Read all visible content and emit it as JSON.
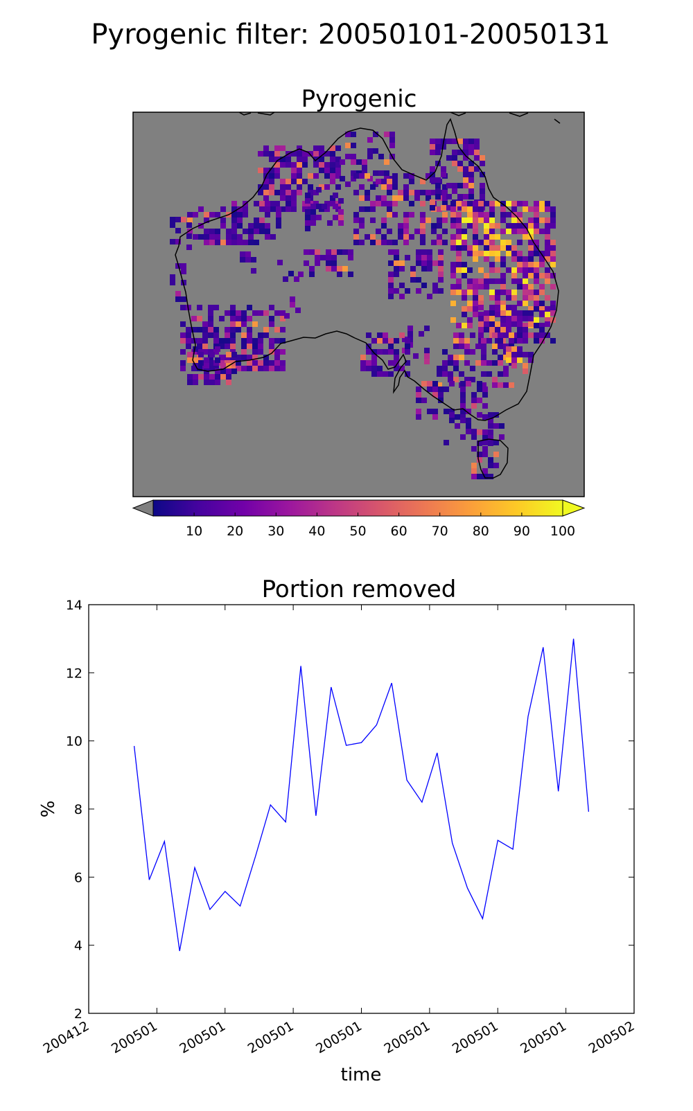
{
  "figure": {
    "suptitle": "Pyrogenic filter: 20050101-20050131"
  },
  "map_panel": {
    "title": "Pyrogenic",
    "background_color": "#808080",
    "coastline_color": "#000000",
    "colorbar": {
      "colormap": "plasma",
      "colormap_stops": [
        "#0d0887",
        "#46039f",
        "#7201a8",
        "#9c179e",
        "#bd3786",
        "#d8576b",
        "#ed7953",
        "#fb9f3a",
        "#fdca26",
        "#f0f921"
      ],
      "ticks": [
        "10",
        "20",
        "30",
        "40",
        "50",
        "60",
        "70",
        "80",
        "90",
        "100"
      ],
      "range": [
        0,
        100
      ],
      "under_color": "#808080",
      "over_color": "#f0f921"
    }
  },
  "chart_data": {
    "type": "line",
    "title": "Portion removed",
    "xlabel": "time",
    "ylabel": "%",
    "xlim": [
      "2004-12-29",
      "2005-02-03"
    ],
    "ylim": [
      2,
      14
    ],
    "yticks": [
      "2",
      "4",
      "6",
      "8",
      "10",
      "12",
      "14"
    ],
    "xticks": [
      "200412",
      "200501",
      "200501",
      "200501",
      "200501",
      "200501",
      "200501",
      "200501",
      "200502"
    ],
    "line_color": "#0000ff",
    "series": [
      {
        "x": [
          "2005-01-01",
          "2005-01-02",
          "2005-01-03",
          "2005-01-04",
          "2005-01-05",
          "2005-01-06",
          "2005-01-07",
          "2005-01-08",
          "2005-01-09",
          "2005-01-10",
          "2005-01-11",
          "2005-01-12",
          "2005-01-13",
          "2005-01-14",
          "2005-01-15",
          "2005-01-16",
          "2005-01-17",
          "2005-01-18",
          "2005-01-19",
          "2005-01-20",
          "2005-01-21",
          "2005-01-22",
          "2005-01-23",
          "2005-01-24",
          "2005-01-25",
          "2005-01-26",
          "2005-01-27",
          "2005-01-28",
          "2005-01-29",
          "2005-01-30",
          "2005-01-31"
        ],
        "values": [
          9.85,
          5.92,
          7.05,
          3.83,
          6.28,
          5.05,
          5.58,
          5.15,
          6.6,
          8.12,
          7.62,
          12.2,
          7.8,
          11.58,
          9.87,
          9.95,
          10.47,
          11.7,
          8.85,
          8.2,
          9.65,
          7.0,
          5.68,
          4.78,
          7.08,
          6.82,
          10.72,
          12.75,
          8.52,
          13.0,
          7.92
        ]
      }
    ]
  }
}
